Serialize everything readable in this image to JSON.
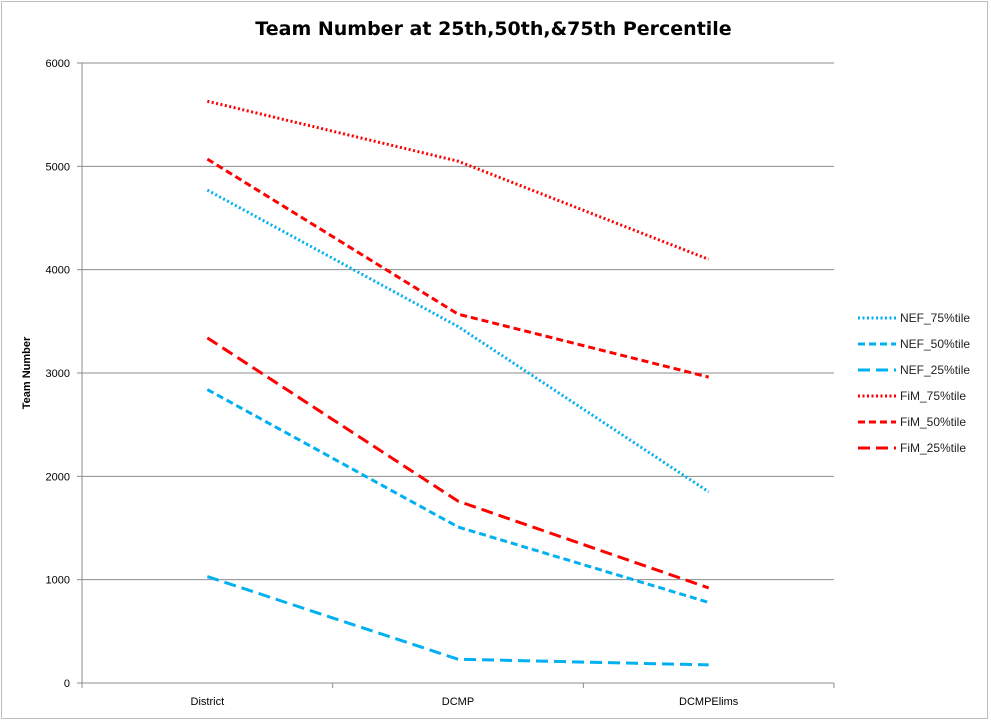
{
  "chart_data": {
    "type": "line",
    "title": "Team Number at 25th,50th,&75th Percentile",
    "xlabel": "",
    "ylabel": "Team Number",
    "categories": [
      "District",
      "DCMP",
      "DCMPElims"
    ],
    "ylim": [
      0,
      6000
    ],
    "yticks": [
      0,
      1000,
      2000,
      3000,
      4000,
      5000,
      6000
    ],
    "grid": true,
    "legend": "right",
    "series": [
      {
        "name": "NEF_75%tile",
        "values": [
          4770,
          3450,
          1850
        ],
        "color": "#00B0F0",
        "style": "dotted"
      },
      {
        "name": "NEF_50%tile",
        "values": [
          2840,
          1510,
          780
        ],
        "color": "#00B0F0",
        "style": "dashed"
      },
      {
        "name": "NEF_25%tile",
        "values": [
          1030,
          230,
          175
        ],
        "color": "#00B0F0",
        "style": "longdash"
      },
      {
        "name": "FiM_75%tile",
        "values": [
          5630,
          5050,
          4100
        ],
        "color": "#FF0000",
        "style": "dotted"
      },
      {
        "name": "FiM_50%tile",
        "values": [
          5070,
          3570,
          2960
        ],
        "color": "#FF0000",
        "style": "dashed"
      },
      {
        "name": "FiM_25%tile",
        "values": [
          3340,
          1760,
          920
        ],
        "color": "#FF0000",
        "style": "longdash"
      }
    ]
  }
}
